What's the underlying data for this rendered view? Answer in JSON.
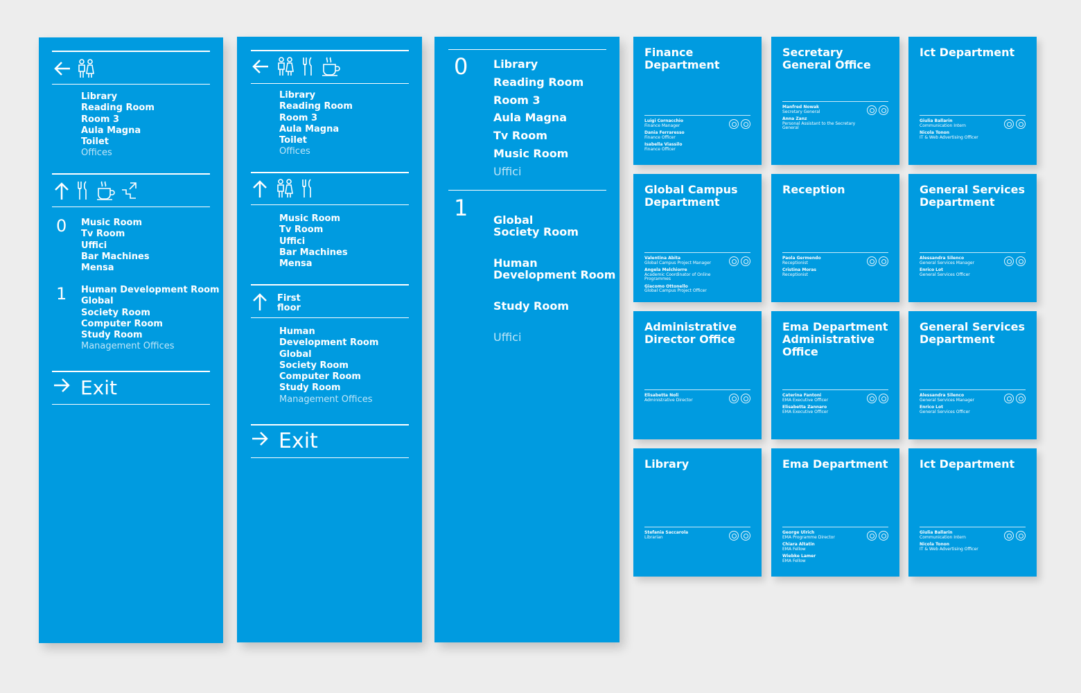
{
  "colors": {
    "sign_blue": "#009be0",
    "background": "#ededed",
    "dim_text": "#bfe6f8"
  },
  "panel1": {
    "block1_items": [
      "Library",
      "Reading Room",
      "Room 3",
      "Aula Magna",
      "Toilet"
    ],
    "block1_dim": "Offices",
    "floor0": "0",
    "floor0_items": [
      "Music Room",
      "Tv Room",
      "Uffici",
      "Bar Machines",
      "Mensa"
    ],
    "floor1": "1",
    "floor1_items": [
      "Human Development Room",
      "Global",
      "Society Room",
      "Computer Room",
      "Study Room"
    ],
    "floor1_dim": "Management Offices",
    "exit": "Exit"
  },
  "panel2": {
    "block1_items": [
      "Library",
      "Reading Room",
      "Room 3",
      "Aula Magna",
      "Toilet"
    ],
    "block1_dim": "Offices",
    "block2_items": [
      "Music Room",
      "Tv Room",
      "Uffici",
      "Bar Machines",
      "Mensa"
    ],
    "floor_label_1": "First",
    "floor_label_2": "floor",
    "block3_items": [
      "Human",
      "Development Room",
      "Global",
      "Society Room",
      "Computer Room",
      "Study Room"
    ],
    "block3_dim": "Management Offices",
    "exit": "Exit"
  },
  "panel3": {
    "floor0": "0",
    "floor0_items": [
      "Library",
      "Reading Room",
      "Room 3",
      "Aula Magna",
      "Tv Room",
      "Music Room"
    ],
    "floor0_dim": "Uffici",
    "floor1": "1",
    "floor1_items": [
      "Global\nSociety Room",
      "Human\nDevelopment Room",
      "Study Room"
    ],
    "floor1_dim": "Uffici"
  },
  "plaques": [
    {
      "title": "Finance Department",
      "people": [
        [
          "Luigi Cornacchio",
          "Finance Manager"
        ],
        [
          "Dania Ferraresso",
          "Finance Officer"
        ],
        [
          "Isabella Viassilo",
          "Finance Officer"
        ]
      ]
    },
    {
      "title": "Secretary General Office",
      "people": [
        [
          "Manfred Nowak",
          "Secretary General"
        ],
        [
          "Anna Zanz",
          "Personal Assistant to the Secretary General"
        ]
      ]
    },
    {
      "title": "Ict Department",
      "people": [
        [
          "Giulia Ballarin",
          "Communication Intern"
        ],
        [
          "Nicola Tonon",
          "IT & Web Advertising Officer"
        ]
      ]
    },
    {
      "title": "Global Campus Department",
      "people": [
        [
          "Valentina Abita",
          "Global Campus Project Manager"
        ],
        [
          "Angela Melchiorre",
          "Academic Coordinator of Online Programmes"
        ],
        [
          "Giacomo Ottonello",
          "Global Campus Project Officer"
        ]
      ]
    },
    {
      "title": "Reception",
      "people": [
        [
          "Paola Germendo",
          "Receptionist"
        ],
        [
          "Cristina Moras",
          "Receptionist"
        ]
      ]
    },
    {
      "title": "General Services Department",
      "people": [
        [
          "Alessandra Silenco",
          "General Services Manager"
        ],
        [
          "Enrico Lot",
          "General Services Officer"
        ]
      ]
    },
    {
      "title": "Administrative Director Office",
      "people": [
        [
          "Elisabetta Noli",
          "Administrative Director"
        ]
      ]
    },
    {
      "title": "Ema Department Administrative Office",
      "people": [
        [
          "Caterina Fantoni",
          "EMA Executive Officer"
        ],
        [
          "Elisabetta Zannaro",
          "EMA Executive Officer"
        ]
      ]
    },
    {
      "title": "General Services Department",
      "people": [
        [
          "Alessandra Silenco",
          "General Services Manager"
        ],
        [
          "Enrico Lot",
          "General Services Officer"
        ]
      ]
    },
    {
      "title": "Library",
      "people": [
        [
          "Stefania Saccarola",
          "Librarian"
        ]
      ]
    },
    {
      "title": "Ema Department",
      "people": [
        [
          "George Ulrich",
          "EMA Programme Director"
        ],
        [
          "Chiara Altatin",
          "EMA Fellow"
        ],
        [
          "Wiebke Lamer",
          "EMA Fellow"
        ]
      ]
    },
    {
      "title": "Ict Department",
      "people": [
        [
          "Giulia Ballarin",
          "Communication Intern"
        ],
        [
          "Nicola Tonon",
          "IT & Web Advertising Officer"
        ]
      ]
    }
  ]
}
